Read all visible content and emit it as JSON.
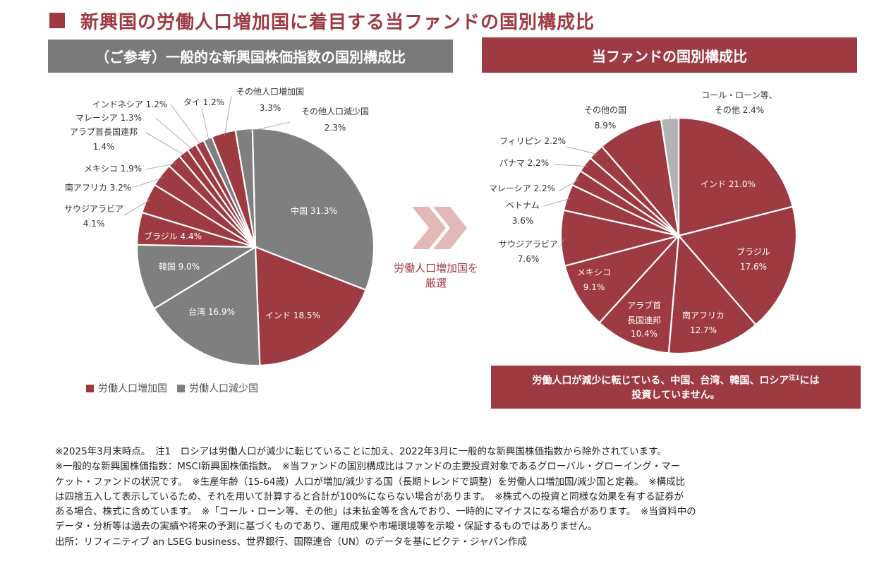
{
  "header": {
    "title": "新興国の労働人口増加国に着目する当ファンドの国別構成比",
    "left_heading": "（ご参考）一般的な新興国株価指数の国別構成比",
    "right_heading": "当ファンドの国別構成比"
  },
  "colors": {
    "increase": "#9e3a42",
    "decrease": "#7f7f7f",
    "other": "#b3b3b3",
    "arrow": "#e3b8b8"
  },
  "legend": {
    "increase_label": "労働人口増加国",
    "decrease_label": "労働人口減少国"
  },
  "arrow": {
    "line1": "労働人口増加国を",
    "line2": "厳選"
  },
  "note_box": {
    "line1": "労働人口が減少に転じている、中国、台湾、韓国、ロシア",
    "line1_sup": "注1",
    "line1_end": "には",
    "line2": "投資していません。"
  },
  "footnotes": [
    "※2025年3月末時点。　注1　ロシアは労働人口が減少に転じていることに加え、2022年3月に一般的な新興国株価指数から除外されています。",
    "※一般的な新興国株価指数：MSCI新興国株価指数。　※当ファンドの国別構成比はファンドの主要投資対象であるグローバル・グローイング・マー",
    "ケット・ファンドの状況です。　※生産年齢（15-64歳）人口が増加/減少する国（長期トレンドで調整）を労働人口増加国/減少国と定義。　※構成比",
    "は四捨五入して表示しているため、それを用いて計算すると合計が100%にならない場合があります。　※株式への投資と同様な効果を有する証券が",
    "ある場合、株式に含めています。　※「コール・ローン等、その他」は未払金等を含んでおり、一時的にマイナスになる場合があります。　※当資料中の",
    "データ・分析等は過去の実績や将来の予測に基づくものであり、運用成果や市場環境等を示唆・保証するものではありません。",
    "出所：リフィニティブ an LSEG business、世界銀行、国際連合（UN）のデータを基にピクテ・ジャパン作成"
  ],
  "chart_data": [
    {
      "type": "pie",
      "title": "（ご参考）一般的な新興国株価指数の国別構成比",
      "slices": [
        {
          "label": "中国",
          "value": 31.3,
          "value_text": "31.3%",
          "group": "decrease",
          "placement": "inside"
        },
        {
          "label": "インド",
          "value": 18.5,
          "value_text": "18.5%",
          "group": "increase",
          "placement": "inside"
        },
        {
          "label": "台湾",
          "value": 16.9,
          "value_text": "16.9%",
          "group": "decrease",
          "placement": "inside"
        },
        {
          "label": "韓国",
          "value": 9.0,
          "value_text": "9.0%",
          "group": "decrease",
          "placement": "inside"
        },
        {
          "label": "ブラジル",
          "value": 4.4,
          "value_text": "4.4%",
          "group": "increase",
          "placement": "inside"
        },
        {
          "label": "サウジアラビア",
          "value": 4.1,
          "value_text": "4.1%",
          "group": "increase",
          "placement": "outside"
        },
        {
          "label": "南アフリカ",
          "value": 3.2,
          "value_text": "3.2%",
          "group": "increase",
          "placement": "outside"
        },
        {
          "label": "メキシコ",
          "value": 1.9,
          "value_text": "1.9%",
          "group": "increase",
          "placement": "outside"
        },
        {
          "label": "アラブ首長国連邦",
          "value": 1.4,
          "value_text": "1.4%",
          "group": "increase",
          "placement": "outside"
        },
        {
          "label": "マレーシア",
          "value": 1.3,
          "value_text": "1.3%",
          "group": "increase",
          "placement": "outside"
        },
        {
          "label": "インドネシア",
          "value": 1.2,
          "value_text": "1.2%",
          "group": "increase",
          "placement": "outside"
        },
        {
          "label": "タイ",
          "value": 1.2,
          "value_text": "1.2%",
          "group": "decrease",
          "placement": "outside"
        },
        {
          "label": "その他人口増加国",
          "value": 3.3,
          "value_text": "3.3%",
          "group": "increase",
          "placement": "outside"
        },
        {
          "label": "その他人口減少国",
          "value": 2.3,
          "value_text": "2.3%",
          "group": "decrease",
          "placement": "outside"
        }
      ]
    },
    {
      "type": "pie",
      "title": "当ファンドの国別構成比",
      "slices": [
        {
          "label": "インド",
          "value": 21.0,
          "value_text": "21.0%",
          "group": "increase",
          "placement": "inside"
        },
        {
          "label": "ブラジル",
          "value": 17.6,
          "value_text": "17.6%",
          "group": "increase",
          "placement": "inside"
        },
        {
          "label": "南アフリカ",
          "value": 12.7,
          "value_text": "12.7%",
          "group": "increase",
          "placement": "inside"
        },
        {
          "label": "アラブ首長国連邦",
          "value": 10.4,
          "value_text": "10.4%",
          "group": "increase",
          "placement": "inside"
        },
        {
          "label": "メキシコ",
          "value": 9.1,
          "value_text": "9.1%",
          "group": "increase",
          "placement": "inside"
        },
        {
          "label": "サウジアラビア",
          "value": 7.6,
          "value_text": "7.6%",
          "group": "increase",
          "placement": "outside"
        },
        {
          "label": "ベトナム",
          "value": 3.6,
          "value_text": "3.6%",
          "group": "increase",
          "placement": "outside"
        },
        {
          "label": "マレーシア",
          "value": 2.2,
          "value_text": "2.2%",
          "group": "increase",
          "placement": "outside"
        },
        {
          "label": "パナマ",
          "value": 2.2,
          "value_text": "2.2%",
          "group": "increase",
          "placement": "outside"
        },
        {
          "label": "フィリピン",
          "value": 2.2,
          "value_text": "2.2%",
          "group": "increase",
          "placement": "outside"
        },
        {
          "label": "その他の国",
          "value": 8.9,
          "value_text": "8.9%",
          "group": "increase",
          "placement": "outside"
        },
        {
          "label": "コール・ローン等、その他",
          "value": 2.4,
          "value_text": "2.4%",
          "group": "other",
          "placement": "outside"
        }
      ]
    }
  ]
}
